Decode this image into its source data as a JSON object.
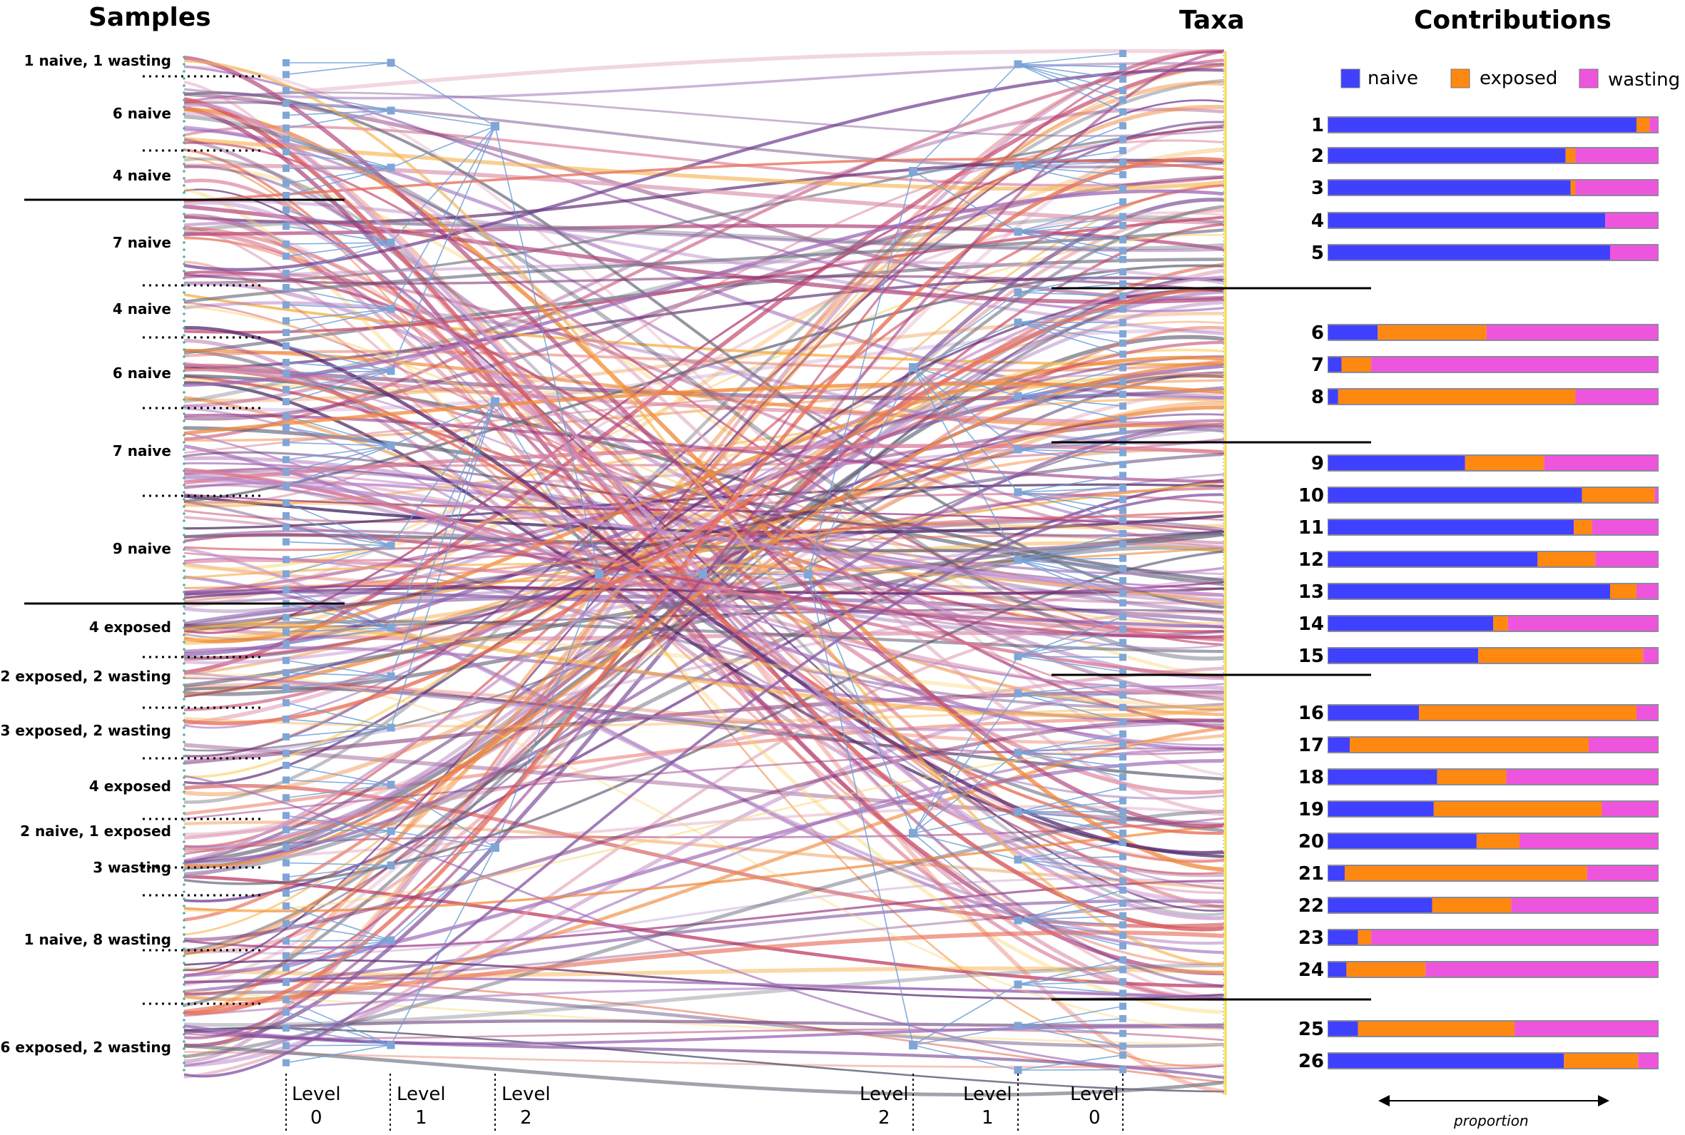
{
  "headings": {
    "samples": "Samples",
    "taxa": "Taxa",
    "contributions": "Contributions"
  },
  "sample_groups": [
    "1 naive, 1 wasting",
    "6 naive",
    "4 naive",
    "7 naive",
    "4 naive",
    "6 naive",
    "7 naive",
    "9 naive",
    "4 exposed",
    "2 exposed, 2 wasting",
    "3 exposed, 2 wasting",
    "4 exposed",
    "2 naive, 1 exposed",
    "3 wasting",
    "1 naive, 8 wasting",
    "6 exposed, 2 wasting"
  ],
  "left_levels": [
    {
      "word": "Level",
      "num": "0"
    },
    {
      "word": "Level",
      "num": "1"
    },
    {
      "word": "Level",
      "num": "2"
    }
  ],
  "right_levels": [
    {
      "word": "Level",
      "num": "2"
    },
    {
      "word": "Level",
      "num": "1"
    },
    {
      "word": "Level",
      "num": "0"
    }
  ],
  "legend": [
    {
      "label": "naive",
      "color": "#4040ff"
    },
    {
      "label": "exposed",
      "color": "#ff8811"
    },
    {
      "label": "wasting",
      "color": "#ee55dd"
    }
  ],
  "axis_label": "proportion",
  "colors": {
    "naive": "#4040ff",
    "exposed": "#ff8811",
    "wasting": "#ee55dd",
    "node": "#7fa6d6",
    "edge": "#6f9fd8",
    "taxa_line": "#f5dd3a"
  },
  "contributions": [
    {
      "id": "1",
      "naive": 0.935,
      "exposed": 0.04,
      "wasting": 0.025
    },
    {
      "id": "2",
      "naive": 0.72,
      "exposed": 0.03,
      "wasting": 0.25
    },
    {
      "id": "3",
      "naive": 0.735,
      "exposed": 0.015,
      "wasting": 0.25
    },
    {
      "id": "4",
      "naive": 0.84,
      "exposed": 0.0,
      "wasting": 0.16
    },
    {
      "id": "5",
      "naive": 0.855,
      "exposed": 0.0,
      "wasting": 0.145
    },
    {
      "id": "6",
      "naive": 0.15,
      "exposed": 0.33,
      "wasting": 0.52
    },
    {
      "id": "7",
      "naive": 0.04,
      "exposed": 0.09,
      "wasting": 0.87
    },
    {
      "id": "8",
      "naive": 0.03,
      "exposed": 0.72,
      "wasting": 0.25
    },
    {
      "id": "9",
      "naive": 0.415,
      "exposed": 0.24,
      "wasting": 0.345
    },
    {
      "id": "10",
      "naive": 0.77,
      "exposed": 0.22,
      "wasting": 0.01
    },
    {
      "id": "11",
      "naive": 0.745,
      "exposed": 0.055,
      "wasting": 0.2
    },
    {
      "id": "12",
      "naive": 0.635,
      "exposed": 0.175,
      "wasting": 0.19
    },
    {
      "id": "13",
      "naive": 0.855,
      "exposed": 0.08,
      "wasting": 0.065
    },
    {
      "id": "14",
      "naive": 0.5,
      "exposed": 0.045,
      "wasting": 0.455
    },
    {
      "id": "15",
      "naive": 0.455,
      "exposed": 0.5,
      "wasting": 0.045
    },
    {
      "id": "16",
      "naive": 0.275,
      "exposed": 0.66,
      "wasting": 0.065
    },
    {
      "id": "17",
      "naive": 0.065,
      "exposed": 0.725,
      "wasting": 0.21
    },
    {
      "id": "18",
      "naive": 0.33,
      "exposed": 0.21,
      "wasting": 0.46
    },
    {
      "id": "19",
      "naive": 0.32,
      "exposed": 0.51,
      "wasting": 0.17
    },
    {
      "id": "20",
      "naive": 0.45,
      "exposed": 0.13,
      "wasting": 0.42
    },
    {
      "id": "21",
      "naive": 0.05,
      "exposed": 0.735,
      "wasting": 0.215
    },
    {
      "id": "22",
      "naive": 0.315,
      "exposed": 0.24,
      "wasting": 0.445
    },
    {
      "id": "23",
      "naive": 0.09,
      "exposed": 0.04,
      "wasting": 0.87
    },
    {
      "id": "24",
      "naive": 0.055,
      "exposed": 0.24,
      "wasting": 0.705
    },
    {
      "id": "25",
      "naive": 0.09,
      "exposed": 0.475,
      "wasting": 0.435
    },
    {
      "id": "26",
      "naive": 0.715,
      "exposed": 0.225,
      "wasting": 0.06
    }
  ]
}
